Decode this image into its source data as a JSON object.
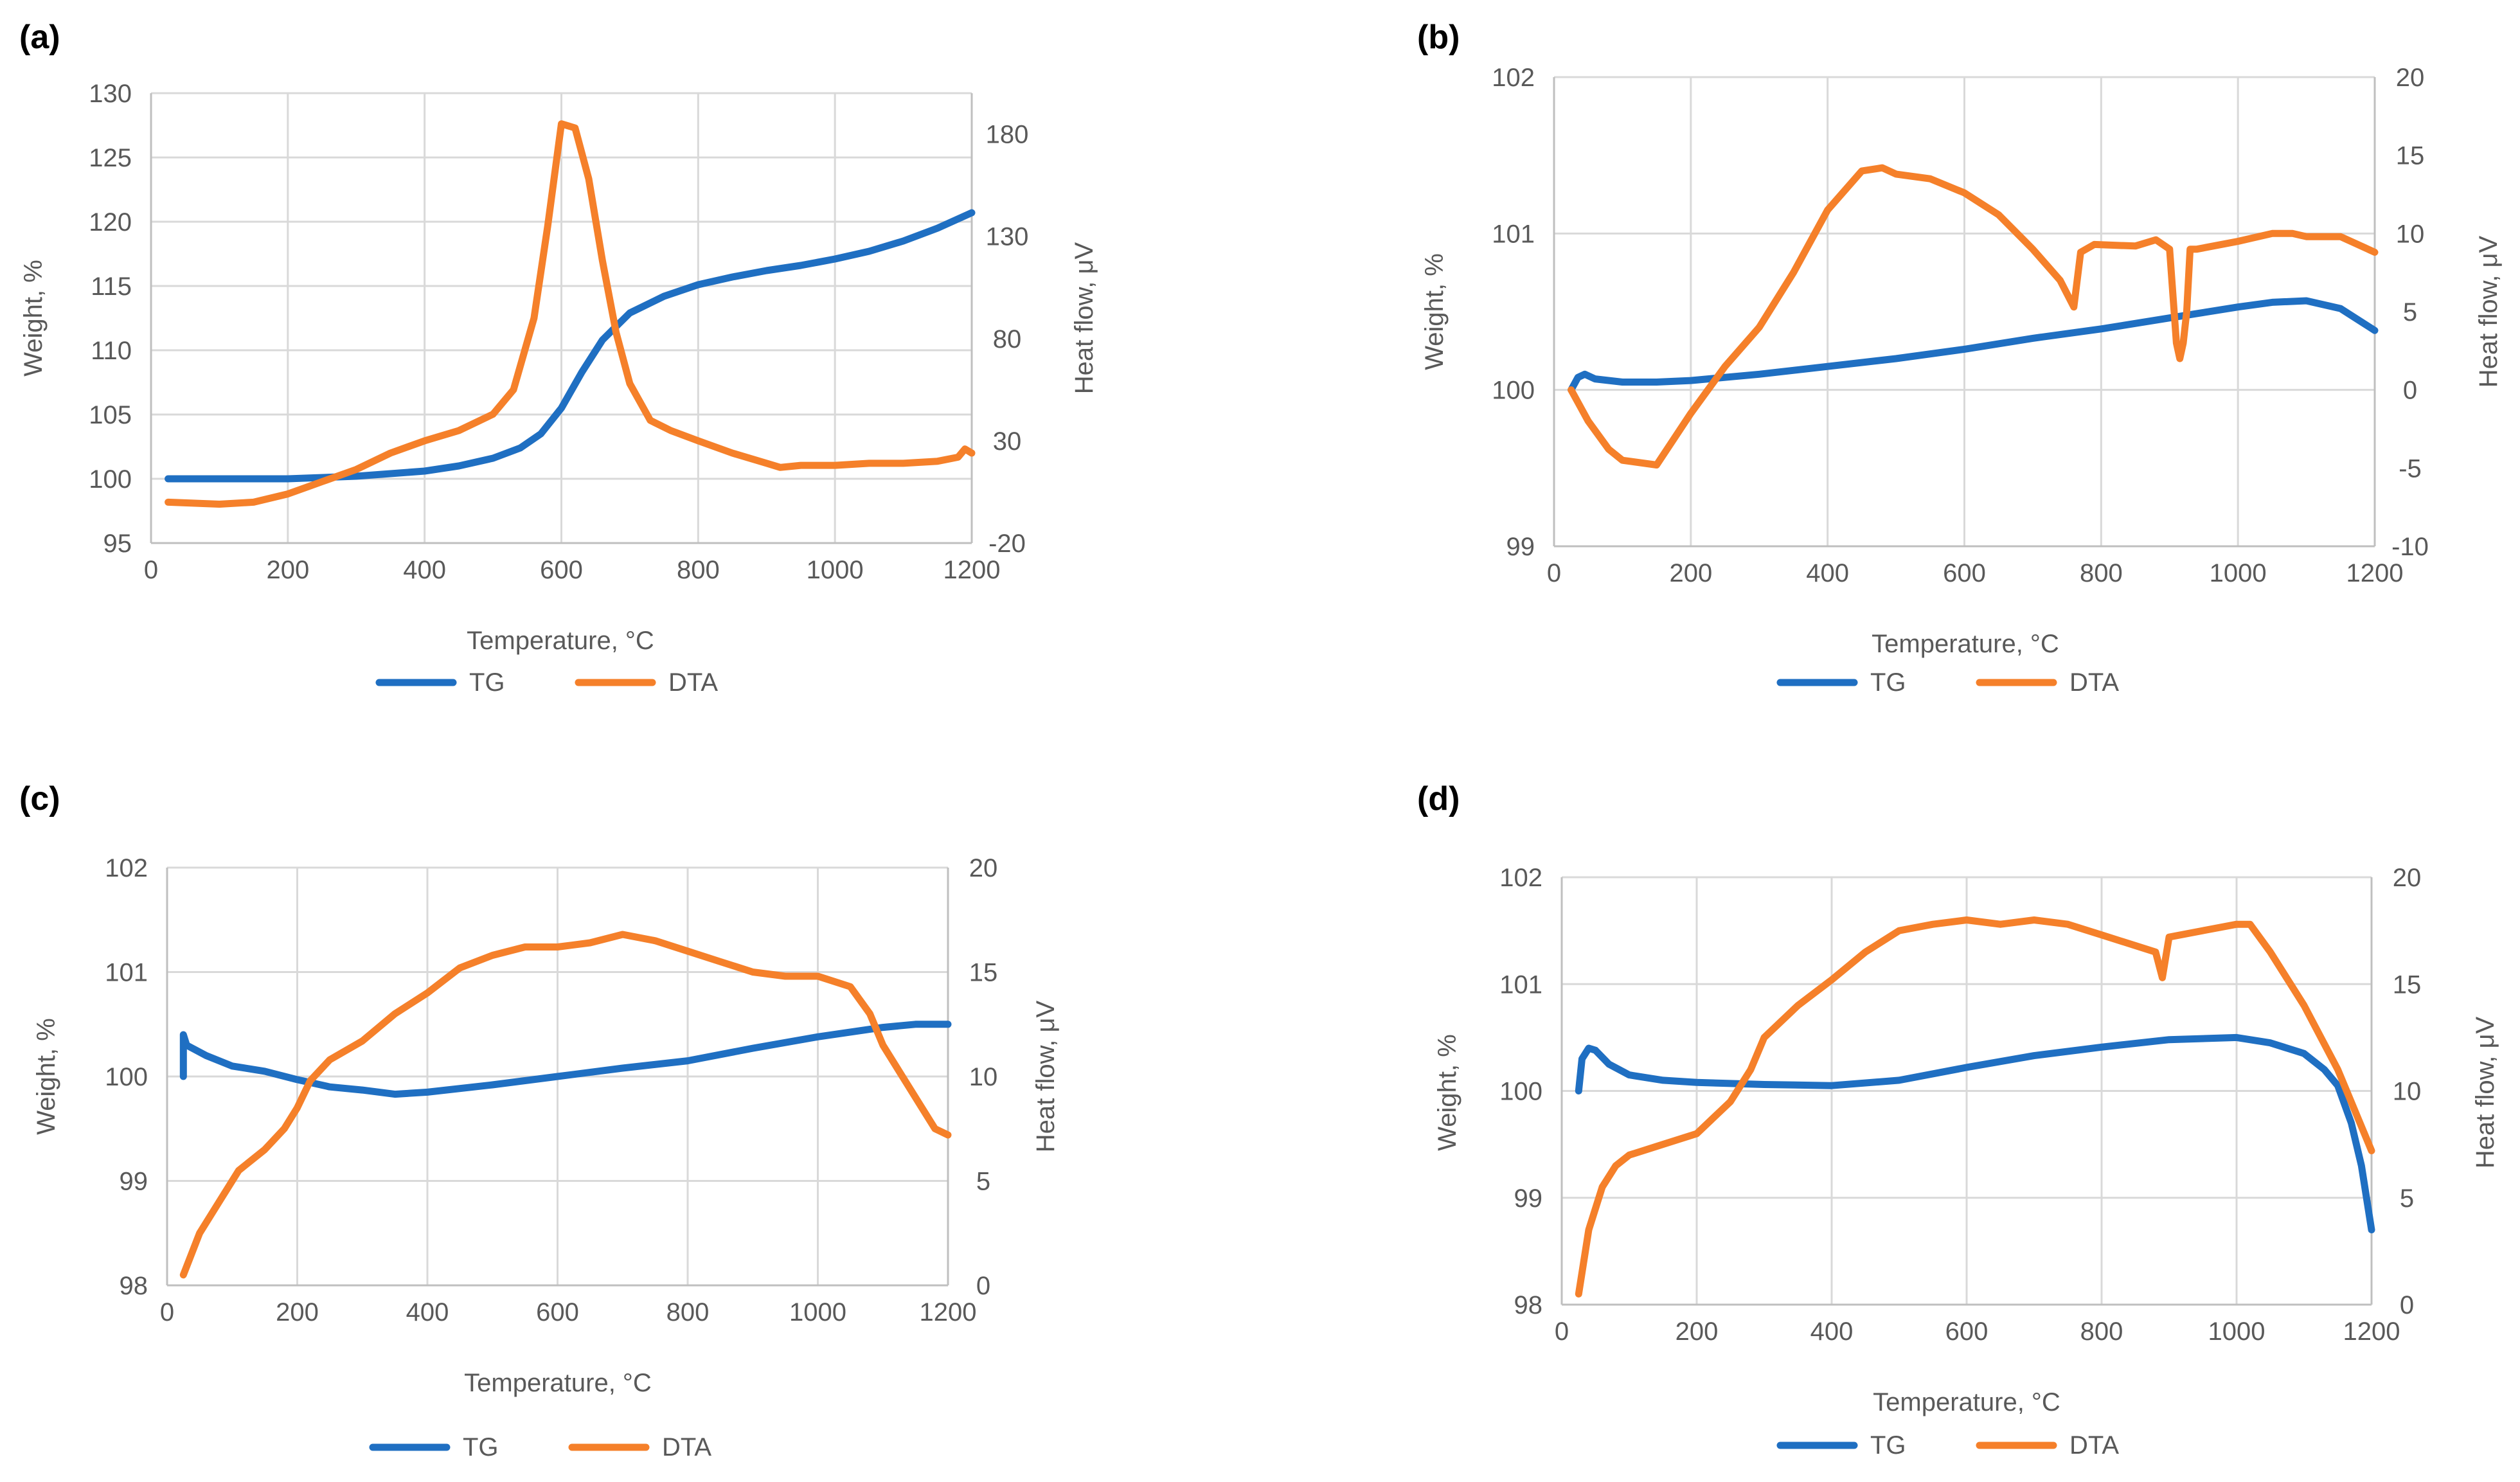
{
  "colors": {
    "tg": "#1f6fc2",
    "dta": "#f5802a"
  },
  "chart_data": [
    {
      "panel": "(a)",
      "type": "line",
      "xlabel": "Temperature, °C",
      "ylabel": "Weight, %",
      "y2label": "Heat flow, μV",
      "xlim": [
        0,
        1200
      ],
      "xticks": [
        0,
        200,
        400,
        600,
        800,
        1000,
        1200
      ],
      "ylim": [
        95,
        130
      ],
      "yticks": [
        95,
        100,
        105,
        110,
        115,
        120,
        125,
        130
      ],
      "y2lim": [
        -20,
        200
      ],
      "y2ticks": [
        -20,
        30,
        80,
        130,
        180
      ],
      "legend": [
        "TG",
        "DTA"
      ],
      "series": [
        {
          "name": "TG",
          "axis": "y",
          "color": "#1f6fc2",
          "x": [
            25,
            100,
            200,
            300,
            400,
            450,
            500,
            540,
            570,
            600,
            630,
            660,
            700,
            750,
            800,
            850,
            900,
            950,
            1000,
            1050,
            1100,
            1150,
            1200
          ],
          "y": [
            100,
            100,
            100,
            100.2,
            100.6,
            101,
            101.6,
            102.4,
            103.5,
            105.5,
            108.3,
            110.8,
            112.9,
            114.2,
            115.1,
            115.7,
            116.2,
            116.6,
            117.1,
            117.7,
            118.5,
            119.5,
            120.7
          ]
        },
        {
          "name": "DTA",
          "axis": "y2",
          "color": "#f5802a",
          "x": [
            25,
            100,
            150,
            200,
            250,
            300,
            350,
            400,
            450,
            500,
            530,
            560,
            580,
            600,
            620,
            640,
            660,
            680,
            700,
            730,
            760,
            800,
            850,
            900,
            920,
            950,
            1000,
            1050,
            1100,
            1150,
            1180,
            1190,
            1200
          ],
          "y": [
            0,
            -1,
            0,
            4,
            10,
            16,
            24,
            30,
            35,
            43,
            55,
            90,
            135,
            185,
            183,
            158,
            118,
            83,
            58,
            40,
            35,
            30,
            24,
            19,
            17,
            18,
            18,
            19,
            19,
            20,
            22,
            26,
            24
          ]
        }
      ]
    },
    {
      "panel": "(b)",
      "type": "line",
      "xlabel": "Temperature, °C",
      "ylabel": "Weight, %",
      "y2label": "Heat flow, μV",
      "xlim": [
        0,
        1200
      ],
      "xticks": [
        0,
        200,
        400,
        600,
        800,
        1000,
        1200
      ],
      "ylim": [
        99,
        102
      ],
      "yticks": [
        99,
        100,
        101,
        102
      ],
      "y2lim": [
        -10,
        20
      ],
      "y2ticks": [
        -10,
        -5,
        0,
        5,
        10,
        15,
        20
      ],
      "legend": [
        "TG",
        "DTA"
      ],
      "series": [
        {
          "name": "TG",
          "axis": "y",
          "color": "#1f6fc2",
          "x": [
            25,
            35,
            45,
            60,
            100,
            150,
            200,
            300,
            400,
            500,
            600,
            700,
            800,
            900,
            1000,
            1050,
            1100,
            1150,
            1200
          ],
          "y": [
            100,
            100.08,
            100.1,
            100.07,
            100.05,
            100.05,
            100.06,
            100.1,
            100.15,
            100.2,
            100.26,
            100.33,
            100.39,
            100.46,
            100.53,
            100.56,
            100.57,
            100.52,
            100.38
          ]
        },
        {
          "name": "DTA",
          "axis": "y2",
          "color": "#f5802a",
          "x": [
            25,
            50,
            80,
            100,
            150,
            200,
            250,
            300,
            350,
            400,
            450,
            480,
            500,
            550,
            600,
            650,
            700,
            740,
            760,
            770,
            790,
            850,
            880,
            900,
            910,
            915,
            920,
            925,
            930,
            940,
            1000,
            1050,
            1080,
            1100,
            1150,
            1200
          ],
          "y": [
            0,
            -2,
            -3.8,
            -4.5,
            -4.8,
            -1.5,
            1.5,
            4,
            7.5,
            11.5,
            14,
            14.2,
            13.8,
            13.5,
            12.6,
            11.2,
            9,
            7,
            5.3,
            8.8,
            9.3,
            9.2,
            9.6,
            9,
            3,
            2,
            3,
            5,
            9,
            9,
            9.5,
            10,
            10,
            9.8,
            9.8,
            8.8
          ]
        }
      ]
    },
    {
      "panel": "(c)",
      "type": "line",
      "xlabel": "Temperature, °C",
      "ylabel": "Weight, %",
      "y2label": "Heat flow, μV",
      "xlim": [
        0,
        1200
      ],
      "xticks": [
        0,
        200,
        400,
        600,
        800,
        1000,
        1200
      ],
      "ylim": [
        98,
        102
      ],
      "yticks": [
        98,
        99,
        100,
        101,
        102
      ],
      "y2lim": [
        0,
        20
      ],
      "y2ticks": [
        0,
        5,
        10,
        15,
        20
      ],
      "legend": [
        "TG",
        "DTA"
      ],
      "series": [
        {
          "name": "TG",
          "axis": "y",
          "color": "#1f6fc2",
          "x": [
            25,
            25,
            30,
            60,
            100,
            150,
            200,
            250,
            300,
            350,
            400,
            500,
            600,
            700,
            800,
            900,
            1000,
            1100,
            1150,
            1200
          ],
          "y": [
            100,
            100.4,
            100.3,
            100.2,
            100.1,
            100.05,
            99.97,
            99.9,
            99.87,
            99.83,
            99.85,
            99.92,
            100,
            100.08,
            100.15,
            100.27,
            100.38,
            100.47,
            100.5,
            100.5
          ]
        },
        {
          "name": "DTA",
          "axis": "y2",
          "color": "#f5802a",
          "x": [
            25,
            50,
            80,
            110,
            150,
            180,
            200,
            220,
            250,
            300,
            350,
            400,
            450,
            500,
            550,
            600,
            650,
            700,
            750,
            800,
            850,
            900,
            950,
            1000,
            1050,
            1080,
            1100,
            1130,
            1160,
            1180,
            1200
          ],
          "y": [
            0.5,
            2.5,
            4,
            5.5,
            6.5,
            7.5,
            8.5,
            9.8,
            10.8,
            11.7,
            13,
            14,
            15.2,
            15.8,
            16.2,
            16.2,
            16.4,
            16.8,
            16.5,
            16,
            15.5,
            15,
            14.8,
            14.8,
            14.3,
            13,
            11.5,
            10,
            8.5,
            7.5,
            7.2
          ]
        }
      ]
    },
    {
      "panel": "(d)",
      "type": "line",
      "xlabel": "Temperature, °C",
      "ylabel": "Weight, %",
      "y2label": "Heat flow, μV",
      "xlim": [
        0,
        1200
      ],
      "xticks": [
        0,
        200,
        400,
        600,
        800,
        1000,
        1200
      ],
      "ylim": [
        98,
        102
      ],
      "yticks": [
        98,
        99,
        100,
        101,
        102
      ],
      "y2lim": [
        0,
        20
      ],
      "y2ticks": [
        0,
        5,
        10,
        15,
        20
      ],
      "legend": [
        "TG",
        "DTA"
      ],
      "series": [
        {
          "name": "TG",
          "axis": "y",
          "color": "#1f6fc2",
          "x": [
            25,
            30,
            40,
            50,
            70,
            100,
            150,
            200,
            250,
            300,
            400,
            500,
            600,
            700,
            800,
            900,
            1000,
            1050,
            1100,
            1130,
            1150,
            1170,
            1185,
            1200
          ],
          "y": [
            100,
            100.3,
            100.4,
            100.38,
            100.25,
            100.15,
            100.1,
            100.08,
            100.07,
            100.06,
            100.05,
            100.1,
            100.22,
            100.33,
            100.41,
            100.48,
            100.5,
            100.45,
            100.35,
            100.2,
            100.05,
            99.7,
            99.3,
            98.7
          ]
        },
        {
          "name": "DTA",
          "axis": "y2",
          "color": "#f5802a",
          "x": [
            25,
            40,
            60,
            80,
            100,
            150,
            200,
            250,
            280,
            300,
            350,
            400,
            450,
            500,
            550,
            600,
            650,
            700,
            750,
            800,
            850,
            880,
            890,
            900,
            950,
            1000,
            1020,
            1050,
            1100,
            1150,
            1200
          ],
          "y": [
            0.5,
            3.5,
            5.5,
            6.5,
            7,
            7.5,
            8,
            9.5,
            11,
            12.5,
            14,
            15.2,
            16.5,
            17.5,
            17.8,
            18,
            17.8,
            18,
            17.8,
            17.3,
            16.8,
            16.5,
            15.3,
            17.2,
            17.5,
            17.8,
            17.8,
            16.5,
            14,
            11,
            7.2
          ]
        }
      ]
    }
  ]
}
